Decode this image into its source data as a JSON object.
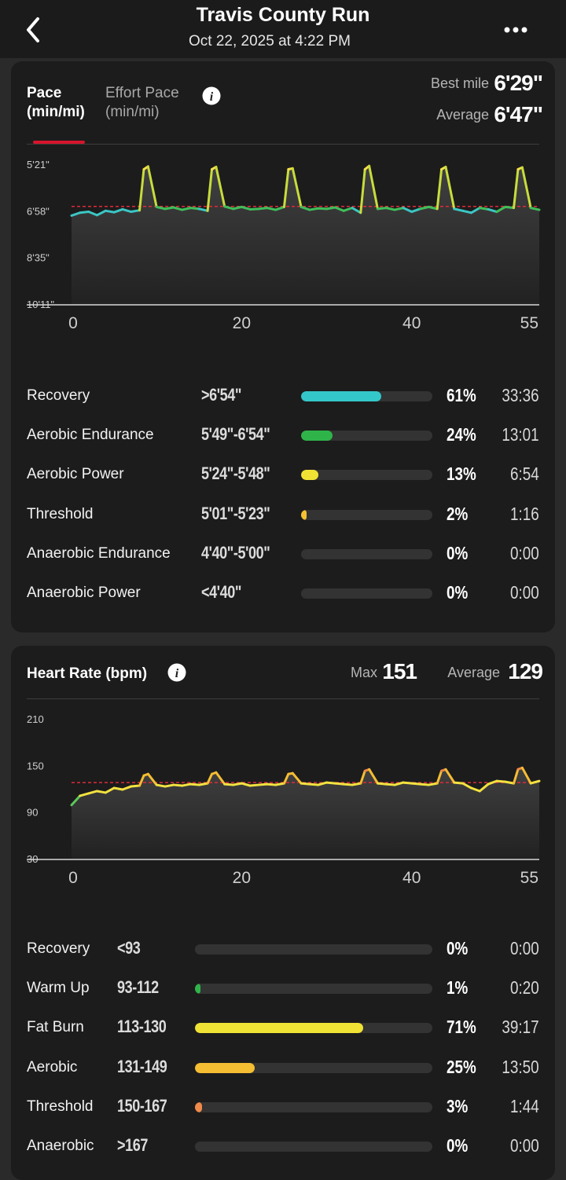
{
  "header": {
    "title": "Travis County Run",
    "subtitle": "Oct 22, 2025 at 4:22 PM"
  },
  "pace": {
    "tab_active_line1": "Pace",
    "tab_active_line2": "(min/mi)",
    "tab_inactive_line1": "Effort Pace",
    "tab_inactive_line2": "(min/mi)",
    "best_label": "Best mile",
    "best_value": "6'29\"",
    "avg_label": "Average",
    "avg_value": "6'47\"",
    "y_ticks": [
      "5'21\"",
      "6'58\"",
      "8'35\"",
      "10'11\""
    ],
    "x_ticks": [
      "0",
      "20",
      "40",
      "55"
    ],
    "zones": [
      {
        "name": "Recovery",
        "range": ">6'54\"",
        "pct": "61%",
        "time": "33:36",
        "fill": 0.61,
        "color": "#34c7c9"
      },
      {
        "name": "Aerobic Endurance",
        "range": "5'49\"-6'54\"",
        "pct": "24%",
        "time": "13:01",
        "fill": 0.24,
        "color": "#2fb44a"
      },
      {
        "name": "Aerobic Power",
        "range": "5'24\"-5'48\"",
        "pct": "13%",
        "time": "6:54",
        "fill": 0.13,
        "color": "#f0e234"
      },
      {
        "name": "Threshold",
        "range": "5'01\"-5'23\"",
        "pct": "2%",
        "time": "1:16",
        "fill": 0.02,
        "color": "#f5c232"
      },
      {
        "name": "Anaerobic Endurance",
        "range": "4'40\"-5'00\"",
        "pct": "0%",
        "time": "0:00",
        "fill": 0,
        "color": "#f08a3c"
      },
      {
        "name": "Anaerobic Power",
        "range": "<4'40\"",
        "pct": "0%",
        "time": "0:00",
        "fill": 0,
        "color": "#e0483c"
      }
    ]
  },
  "heart_rate": {
    "title": "Heart Rate (bpm)",
    "max_label": "Max",
    "max_value": "151",
    "avg_label": "Average",
    "avg_value": "129",
    "y_ticks": [
      "210",
      "150",
      "90",
      "30"
    ],
    "x_ticks": [
      "0",
      "20",
      "40",
      "55"
    ],
    "zones": [
      {
        "name": "Recovery",
        "range": "<93",
        "pct": "0%",
        "time": "0:00",
        "fill": 0,
        "color": "#34c7c9"
      },
      {
        "name": "Warm Up",
        "range": "93-112",
        "pct": "1%",
        "time": "0:20",
        "fill": 0.01,
        "color": "#2fb44a"
      },
      {
        "name": "Fat Burn",
        "range": "113-130",
        "pct": "71%",
        "time": "39:17",
        "fill": 0.71,
        "color": "#f0e234"
      },
      {
        "name": "Aerobic",
        "range": "131-149",
        "pct": "25%",
        "time": "13:50",
        "fill": 0.25,
        "color": "#f5bd32"
      },
      {
        "name": "Threshold",
        "range": "150-167",
        "pct": "3%",
        "time": "1:44",
        "fill": 0.03,
        "color": "#f08a4a"
      },
      {
        "name": "Anaerobic",
        "range": ">167",
        "pct": "0%",
        "time": "0:00",
        "fill": 0,
        "color": "#e0483c"
      }
    ]
  },
  "chart_data": [
    {
      "type": "line",
      "ylabel": "Pace (min/mi)",
      "x_range": [
        0,
        55
      ],
      "y_ticks": [
        "5'21\"",
        "6'58\"",
        "8'35\"",
        "10'11\""
      ],
      "y_range_sec_per_mile": [
        321,
        611
      ],
      "y_reversed": true,
      "average_line": "6'47\"",
      "series": [
        {
          "x": [
            0,
            1,
            2,
            3,
            4,
            5,
            6,
            7,
            8,
            8.5,
            9,
            10,
            11,
            12,
            13,
            14,
            15,
            16,
            16.5,
            17,
            18,
            19,
            20,
            21,
            22,
            23,
            24,
            25,
            25.5,
            26,
            27,
            28,
            29,
            30,
            31,
            32,
            33,
            34,
            34.5,
            35,
            36,
            37,
            38,
            39,
            40,
            41,
            42,
            43,
            43.5,
            44,
            45,
            46,
            47,
            48,
            49,
            50,
            51,
            52,
            52.5,
            53,
            54,
            55
          ],
          "y": [
            426,
            420,
            418,
            425,
            416,
            419,
            413,
            418,
            415,
            330,
            324,
            408,
            412,
            409,
            414,
            410,
            412,
            416,
            330,
            325,
            407,
            412,
            408,
            413,
            412,
            410,
            414,
            408,
            330,
            328,
            408,
            414,
            411,
            412,
            409,
            416,
            410,
            420,
            330,
            323,
            412,
            410,
            414,
            410,
            418,
            412,
            408,
            412,
            330,
            325,
            412,
            416,
            420,
            410,
            413,
            418,
            408,
            410,
            330,
            326,
            410,
            414
          ]
        }
      ]
    },
    {
      "type": "line",
      "ylabel": "Heart Rate (bpm)",
      "x_range": [
        0,
        55
      ],
      "y_range": [
        30,
        210
      ],
      "average_line": 129,
      "series": [
        {
          "x": [
            0,
            1,
            2,
            3,
            4,
            5,
            6,
            7,
            8,
            8.5,
            9,
            10,
            11,
            12,
            13,
            14,
            15,
            16,
            16.5,
            17,
            18,
            19,
            20,
            21,
            22,
            23,
            24,
            25,
            25.5,
            26,
            27,
            28,
            29,
            30,
            31,
            32,
            33,
            34,
            34.5,
            35,
            36,
            37,
            38,
            39,
            40,
            41,
            42,
            43,
            43.5,
            44,
            45,
            46,
            47,
            48,
            49,
            50,
            51,
            52,
            52.5,
            53,
            54,
            55
          ],
          "y": [
            100,
            112,
            115,
            118,
            116,
            122,
            120,
            124,
            125,
            138,
            140,
            126,
            124,
            126,
            125,
            127,
            126,
            128,
            140,
            142,
            127,
            126,
            128,
            125,
            126,
            127,
            126,
            128,
            140,
            141,
            128,
            127,
            126,
            129,
            128,
            127,
            126,
            128,
            144,
            146,
            128,
            127,
            126,
            129,
            128,
            127,
            126,
            128,
            144,
            146,
            129,
            128,
            122,
            118,
            127,
            131,
            130,
            128,
            146,
            148,
            128,
            131
          ]
        }
      ]
    }
  ]
}
